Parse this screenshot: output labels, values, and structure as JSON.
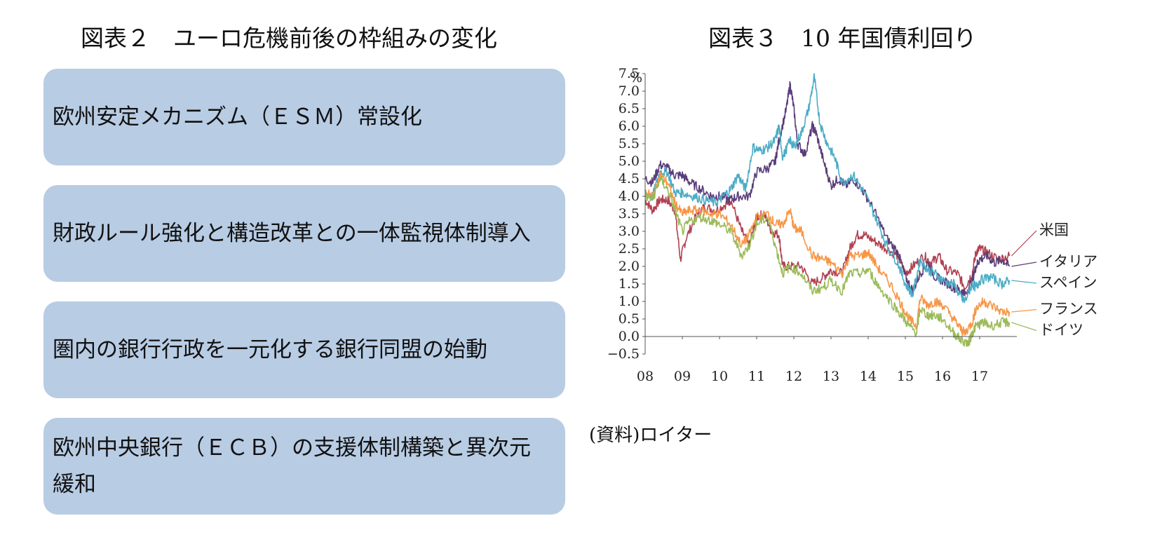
{
  "figure2": {
    "title": "図表２　ユーロ危機前後の枠組みの変化",
    "boxes": [
      "欧州安定メカニズム（ＥＳＭ）常設化",
      "財政ルール強化と構造改革との一体監視体制導入",
      "圏内の銀行行政を一元化する銀行同盟の始動",
      "欧州中央銀行（ＥＣＢ）の支援体制構築と異次元緩和"
    ],
    "box_color": "#b8cce4"
  },
  "figure3": {
    "title": "図表３　10 年国債利回り",
    "source": "(資料)ロイター"
  },
  "chart_data": {
    "type": "line",
    "title": "図表３　10 年国債利回り",
    "ylabel": "%",
    "xlabel": "",
    "ylim": [
      -0.5,
      7.5
    ],
    "xlim": [
      2008,
      2018
    ],
    "yticks": [
      "7.5",
      "7.0",
      "6.5",
      "6.0",
      "5.5",
      "5.0",
      "4.5",
      "4.0",
      "3.5",
      "3.0",
      "2.5",
      "2.0",
      "1.5",
      "1.0",
      "0.5",
      "0.0",
      "−0.5"
    ],
    "xticks": [
      "08",
      "09",
      "10",
      "11",
      "12",
      "13",
      "14",
      "15",
      "16",
      "17"
    ],
    "grid": false,
    "series": [
      {
        "name": "米国",
        "color": "#b04050",
        "points": [
          [
            2008.0,
            3.9
          ],
          [
            2008.2,
            3.6
          ],
          [
            2008.4,
            3.9
          ],
          [
            2008.6,
            3.9
          ],
          [
            2008.8,
            3.6
          ],
          [
            2008.95,
            2.2
          ],
          [
            2009.1,
            2.8
          ],
          [
            2009.4,
            3.5
          ],
          [
            2009.6,
            3.7
          ],
          [
            2009.9,
            3.6
          ],
          [
            2010.2,
            3.8
          ],
          [
            2010.3,
            3.9
          ],
          [
            2010.6,
            3.0
          ],
          [
            2010.8,
            2.6
          ],
          [
            2011.0,
            3.4
          ],
          [
            2011.2,
            3.5
          ],
          [
            2011.4,
            3.0
          ],
          [
            2011.6,
            2.9
          ],
          [
            2011.7,
            2.0
          ],
          [
            2011.9,
            2.0
          ],
          [
            2012.2,
            2.0
          ],
          [
            2012.5,
            1.5
          ],
          [
            2012.8,
            1.7
          ],
          [
            2013.0,
            1.9
          ],
          [
            2013.3,
            1.8
          ],
          [
            2013.5,
            2.5
          ],
          [
            2013.7,
            2.9
          ],
          [
            2013.9,
            2.9
          ],
          [
            2014.2,
            2.7
          ],
          [
            2014.5,
            2.5
          ],
          [
            2014.8,
            2.3
          ],
          [
            2015.0,
            1.8
          ],
          [
            2015.2,
            2.0
          ],
          [
            2015.5,
            2.3
          ],
          [
            2015.7,
            2.1
          ],
          [
            2015.9,
            2.3
          ],
          [
            2016.1,
            1.9
          ],
          [
            2016.4,
            1.8
          ],
          [
            2016.6,
            1.4
          ],
          [
            2016.8,
            1.8
          ],
          [
            2016.9,
            2.4
          ],
          [
            2017.0,
            2.5
          ],
          [
            2017.2,
            2.4
          ],
          [
            2017.5,
            2.2
          ],
          [
            2017.8,
            2.3
          ]
        ]
      },
      {
        "name": "イタリア",
        "color": "#5a3d7a",
        "points": [
          [
            2008.0,
            4.5
          ],
          [
            2008.2,
            4.4
          ],
          [
            2008.4,
            4.9
          ],
          [
            2008.6,
            4.8
          ],
          [
            2008.8,
            4.6
          ],
          [
            2009.0,
            4.6
          ],
          [
            2009.2,
            4.4
          ],
          [
            2009.5,
            4.2
          ],
          [
            2009.8,
            4.0
          ],
          [
            2010.0,
            4.0
          ],
          [
            2010.3,
            3.9
          ],
          [
            2010.5,
            4.0
          ],
          [
            2010.8,
            4.0
          ],
          [
            2011.0,
            4.7
          ],
          [
            2011.3,
            4.8
          ],
          [
            2011.5,
            5.0
          ],
          [
            2011.6,
            5.6
          ],
          [
            2011.8,
            6.5
          ],
          [
            2011.9,
            7.2
          ],
          [
            2012.0,
            6.5
          ],
          [
            2012.1,
            5.5
          ],
          [
            2012.3,
            5.2
          ],
          [
            2012.5,
            6.0
          ],
          [
            2012.6,
            5.8
          ],
          [
            2012.8,
            5.0
          ],
          [
            2013.0,
            4.3
          ],
          [
            2013.2,
            4.5
          ],
          [
            2013.4,
            4.3
          ],
          [
            2013.6,
            4.5
          ],
          [
            2013.9,
            4.1
          ],
          [
            2014.2,
            3.5
          ],
          [
            2014.5,
            2.8
          ],
          [
            2014.8,
            2.4
          ],
          [
            2015.0,
            1.7
          ],
          [
            2015.2,
            1.3
          ],
          [
            2015.4,
            1.8
          ],
          [
            2015.6,
            2.1
          ],
          [
            2015.8,
            1.7
          ],
          [
            2016.0,
            1.6
          ],
          [
            2016.3,
            1.4
          ],
          [
            2016.5,
            1.3
          ],
          [
            2016.6,
            1.2
          ],
          [
            2016.8,
            1.6
          ],
          [
            2016.9,
            2.0
          ],
          [
            2017.0,
            2.2
          ],
          [
            2017.2,
            2.3
          ],
          [
            2017.4,
            2.1
          ],
          [
            2017.6,
            2.2
          ],
          [
            2017.8,
            2.0
          ]
        ]
      },
      {
        "name": "スペイン",
        "color": "#4bacc6",
        "points": [
          [
            2008.0,
            4.1
          ],
          [
            2008.2,
            4.0
          ],
          [
            2008.4,
            4.7
          ],
          [
            2008.6,
            4.7
          ],
          [
            2008.8,
            4.1
          ],
          [
            2009.0,
            4.1
          ],
          [
            2009.3,
            4.0
          ],
          [
            2009.6,
            3.9
          ],
          [
            2009.9,
            3.8
          ],
          [
            2010.1,
            4.0
          ],
          [
            2010.3,
            4.2
          ],
          [
            2010.5,
            4.6
          ],
          [
            2010.7,
            4.2
          ],
          [
            2010.9,
            5.4
          ],
          [
            2011.1,
            5.3
          ],
          [
            2011.3,
            5.4
          ],
          [
            2011.5,
            5.6
          ],
          [
            2011.6,
            6.0
          ],
          [
            2011.7,
            5.1
          ],
          [
            2011.9,
            5.6
          ],
          [
            2012.0,
            5.4
          ],
          [
            2012.2,
            5.8
          ],
          [
            2012.4,
            6.5
          ],
          [
            2012.55,
            7.4
          ],
          [
            2012.7,
            6.1
          ],
          [
            2012.9,
            5.5
          ],
          [
            2013.1,
            5.1
          ],
          [
            2013.3,
            4.4
          ],
          [
            2013.6,
            4.6
          ],
          [
            2013.9,
            4.1
          ],
          [
            2014.2,
            3.4
          ],
          [
            2014.5,
            2.6
          ],
          [
            2014.8,
            2.1
          ],
          [
            2015.0,
            1.5
          ],
          [
            2015.2,
            1.2
          ],
          [
            2015.4,
            2.2
          ],
          [
            2015.6,
            1.9
          ],
          [
            2015.8,
            1.8
          ],
          [
            2016.0,
            1.6
          ],
          [
            2016.3,
            1.5
          ],
          [
            2016.5,
            1.1
          ],
          [
            2016.6,
            1.0
          ],
          [
            2016.8,
            1.5
          ],
          [
            2016.9,
            1.4
          ],
          [
            2017.0,
            1.6
          ],
          [
            2017.3,
            1.7
          ],
          [
            2017.6,
            1.5
          ],
          [
            2017.8,
            1.6
          ]
        ]
      },
      {
        "name": "フランス",
        "color": "#f79646",
        "points": [
          [
            2008.0,
            4.1
          ],
          [
            2008.2,
            4.0
          ],
          [
            2008.4,
            4.6
          ],
          [
            2008.6,
            4.4
          ],
          [
            2008.8,
            3.8
          ],
          [
            2009.0,
            3.5
          ],
          [
            2009.2,
            3.6
          ],
          [
            2009.5,
            3.6
          ],
          [
            2009.8,
            3.5
          ],
          [
            2010.0,
            3.5
          ],
          [
            2010.3,
            3.2
          ],
          [
            2010.6,
            2.6
          ],
          [
            2010.8,
            2.9
          ],
          [
            2011.0,
            3.4
          ],
          [
            2011.3,
            3.5
          ],
          [
            2011.5,
            3.2
          ],
          [
            2011.7,
            3.2
          ],
          [
            2011.9,
            3.6
          ],
          [
            2012.0,
            3.1
          ],
          [
            2012.2,
            3.0
          ],
          [
            2012.5,
            2.3
          ],
          [
            2012.8,
            2.2
          ],
          [
            2013.0,
            2.1
          ],
          [
            2013.3,
            1.8
          ],
          [
            2013.5,
            2.3
          ],
          [
            2013.8,
            2.3
          ],
          [
            2014.0,
            2.4
          ],
          [
            2014.3,
            1.9
          ],
          [
            2014.6,
            1.5
          ],
          [
            2014.9,
            0.9
          ],
          [
            2015.1,
            0.5
          ],
          [
            2015.3,
            0.3
          ],
          [
            2015.4,
            1.1
          ],
          [
            2015.6,
            0.9
          ],
          [
            2015.8,
            1.0
          ],
          [
            2016.0,
            0.9
          ],
          [
            2016.3,
            0.5
          ],
          [
            2016.5,
            0.2
          ],
          [
            2016.6,
            0.1
          ],
          [
            2016.8,
            0.4
          ],
          [
            2016.9,
            0.8
          ],
          [
            2017.1,
            1.0
          ],
          [
            2017.3,
            0.9
          ],
          [
            2017.6,
            0.7
          ],
          [
            2017.8,
            0.7
          ]
        ]
      },
      {
        "name": "ドイツ",
        "color": "#9bbb59",
        "points": [
          [
            2008.0,
            4.0
          ],
          [
            2008.2,
            3.9
          ],
          [
            2008.4,
            4.5
          ],
          [
            2008.6,
            4.2
          ],
          [
            2008.8,
            3.6
          ],
          [
            2009.0,
            3.0
          ],
          [
            2009.2,
            3.3
          ],
          [
            2009.5,
            3.4
          ],
          [
            2009.8,
            3.3
          ],
          [
            2010.0,
            3.2
          ],
          [
            2010.3,
            3.0
          ],
          [
            2010.6,
            2.3
          ],
          [
            2010.8,
            2.6
          ],
          [
            2011.0,
            3.2
          ],
          [
            2011.3,
            3.4
          ],
          [
            2011.5,
            2.6
          ],
          [
            2011.7,
            1.8
          ],
          [
            2011.9,
            2.0
          ],
          [
            2012.2,
            1.8
          ],
          [
            2012.5,
            1.3
          ],
          [
            2012.8,
            1.4
          ],
          [
            2013.0,
            1.6
          ],
          [
            2013.3,
            1.3
          ],
          [
            2013.5,
            1.8
          ],
          [
            2013.8,
            1.8
          ],
          [
            2014.0,
            1.9
          ],
          [
            2014.3,
            1.4
          ],
          [
            2014.6,
            1.0
          ],
          [
            2014.9,
            0.6
          ],
          [
            2015.1,
            0.3
          ],
          [
            2015.3,
            0.1
          ],
          [
            2015.4,
            0.8
          ],
          [
            2015.6,
            0.6
          ],
          [
            2015.8,
            0.6
          ],
          [
            2016.0,
            0.5
          ],
          [
            2016.3,
            0.1
          ],
          [
            2016.5,
            -0.1
          ],
          [
            2016.7,
            -0.2
          ],
          [
            2016.8,
            0.1
          ],
          [
            2016.9,
            0.3
          ],
          [
            2017.1,
            0.4
          ],
          [
            2017.3,
            0.3
          ],
          [
            2017.6,
            0.4
          ],
          [
            2017.8,
            0.4
          ]
        ]
      }
    ]
  }
}
